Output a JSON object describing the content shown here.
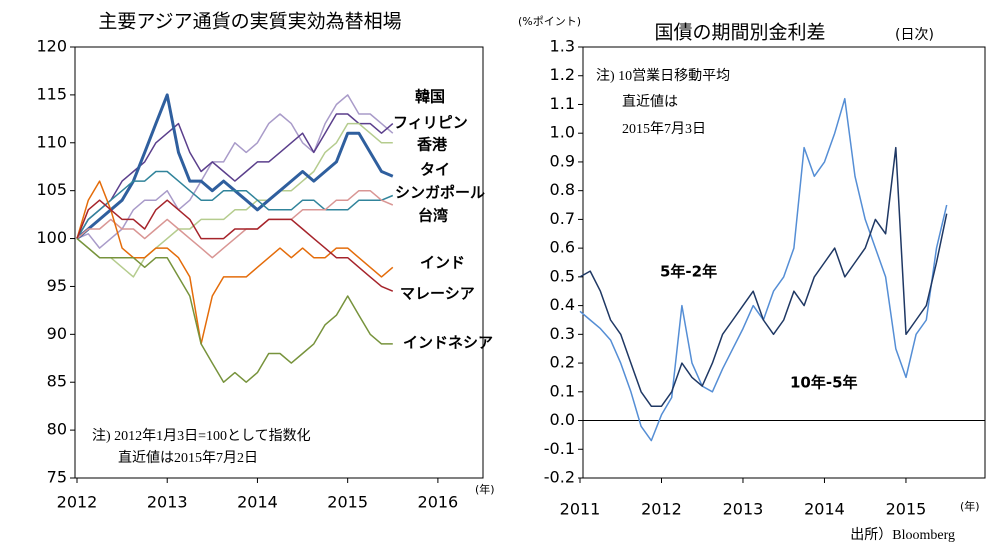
{
  "chart_data": [
    {
      "type": "line",
      "title": "主要アジア通貨の実質実効為替相場",
      "x_unit": "(年)",
      "notes": [
        "注) 2012年1月3日=100として指数化",
        "直近値は2015年7月2日"
      ],
      "x": [
        2012,
        2012.125,
        2012.25,
        2012.375,
        2012.5,
        2012.625,
        2012.75,
        2012.875,
        2013,
        2013.125,
        2013.25,
        2013.375,
        2013.5,
        2013.625,
        2013.75,
        2013.875,
        2014,
        2014.125,
        2014.25,
        2014.375,
        2014.5,
        2014.625,
        2014.75,
        2014.875,
        2015,
        2015.125,
        2015.25,
        2015.375,
        2015.5
      ],
      "xlim": [
        2012,
        2016.5
      ],
      "xticks": [
        2012,
        2013,
        2014,
        2015,
        2016
      ],
      "ylim": [
        75,
        120
      ],
      "yticks": [
        75,
        80,
        85,
        90,
        95,
        100,
        105,
        110,
        115,
        120
      ],
      "series": [
        {
          "name": "韓国",
          "color": "#a99bc9",
          "values": [
            100,
            100.5,
            99,
            100,
            101,
            103,
            104,
            104,
            105,
            103,
            104,
            106,
            108,
            108,
            110,
            109,
            110,
            112,
            113,
            112,
            110,
            109,
            112,
            114,
            115,
            113,
            113,
            112,
            111
          ]
        },
        {
          "name": "フィリピン",
          "color": "#5b3f8c",
          "values": [
            100,
            102,
            103,
            104,
            106,
            107,
            108,
            110,
            111,
            112,
            109,
            107,
            108,
            107,
            106,
            107,
            108,
            108,
            109,
            110,
            111,
            109,
            111,
            113,
            113,
            112,
            112,
            111,
            112
          ]
        },
        {
          "name": "香港",
          "color": "#b5cc8e",
          "values": [
            100,
            99,
            98,
            98,
            97,
            96,
            98,
            99,
            100,
            101,
            101,
            102,
            102,
            102,
            103,
            103,
            104,
            104,
            105,
            105,
            106,
            107,
            109,
            110,
            112,
            112,
            111,
            110,
            110
          ]
        },
        {
          "name": "タイ",
          "color": "#2f5f9e",
          "values": [
            100,
            101,
            102,
            103,
            104,
            106,
            109,
            112,
            115,
            109,
            106,
            106,
            105,
            106,
            105,
            104,
            103,
            104,
            105,
            106,
            107,
            106,
            107,
            108,
            111,
            111,
            109,
            107,
            106.5
          ]
        },
        {
          "name": "シンガポール",
          "color": "#31849b",
          "values": [
            100,
            102,
            103,
            104,
            105,
            106,
            106,
            107,
            107,
            106,
            105,
            104,
            104,
            105,
            105,
            105,
            104,
            103,
            103,
            103,
            104,
            104,
            103,
            103,
            103,
            104,
            104,
            104,
            104.5
          ]
        },
        {
          "name": "台湾",
          "color": "#d99694",
          "values": [
            100,
            101,
            101,
            102,
            101,
            101,
            100,
            101,
            102,
            101,
            100,
            99,
            98,
            99,
            100,
            101,
            101,
            102,
            102,
            102,
            103,
            103,
            103,
            104,
            104,
            105,
            105,
            104,
            103.5
          ]
        },
        {
          "name": "インド",
          "color": "#e46c0a",
          "values": [
            100,
            104,
            106,
            103,
            99,
            98,
            98,
            99,
            99,
            98,
            96,
            89,
            94,
            96,
            96,
            96,
            97,
            98,
            99,
            98,
            99,
            98,
            98,
            99,
            99,
            98,
            97,
            96,
            97
          ]
        },
        {
          "name": "マレーシア",
          "color": "#a6242b",
          "values": [
            100,
            103,
            104,
            103,
            102,
            102,
            101,
            103,
            104,
            103,
            102,
            100,
            100,
            100,
            101,
            101,
            101,
            102,
            102,
            102,
            101,
            100,
            99,
            98,
            98,
            97,
            96,
            95,
            94.5
          ]
        },
        {
          "name": "インドネシア",
          "color": "#77933c",
          "values": [
            100,
            99,
            98,
            98,
            98,
            98,
            97,
            98,
            98,
            96,
            94,
            89,
            87,
            85,
            86,
            85,
            86,
            88,
            88,
            87,
            88,
            89,
            91,
            92,
            94,
            92,
            90,
            89,
            89
          ]
        }
      ]
    },
    {
      "type": "line",
      "title": "国債の期間別金利差",
      "subtitle": "(日次)",
      "y_unit": "(%ポイント)",
      "x_unit": "(年)",
      "notes": [
        "注) 10営業日移動平均",
        "直近値は",
        "2015年7月3日"
      ],
      "source": "出所）Bloomberg",
      "x": [
        2011,
        2011.125,
        2011.25,
        2011.375,
        2011.5,
        2011.625,
        2011.75,
        2011.875,
        2012,
        2012.125,
        2012.25,
        2012.375,
        2012.5,
        2012.625,
        2012.75,
        2012.875,
        2013,
        2013.125,
        2013.25,
        2013.375,
        2013.5,
        2013.625,
        2013.75,
        2013.875,
        2014,
        2014.125,
        2014.25,
        2014.375,
        2014.5,
        2014.625,
        2014.75,
        2014.875,
        2015,
        2015.125,
        2015.25,
        2015.375,
        2015.5
      ],
      "xlim": [
        2011,
        2015.97
      ],
      "xticks": [
        2011,
        2012,
        2013,
        2014,
        2015
      ],
      "ylim": [
        -0.2,
        1.3
      ],
      "yticks": [
        -0.2,
        -0.1,
        {
          "value": 0,
          "label": "0.0"
        },
        0.1,
        0.2,
        0.3,
        0.4,
        0.5,
        0.6,
        0.7,
        0.8,
        0.9,
        {
          "value": 1,
          "label": "1.0"
        },
        1.1,
        1.2,
        1.3
      ],
      "series": [
        {
          "name": "5年-2年",
          "color": "#558ed5",
          "values": [
            0.38,
            0.35,
            0.32,
            0.28,
            0.2,
            0.1,
            -0.02,
            -0.07,
            0.02,
            0.08,
            0.4,
            0.2,
            0.12,
            0.1,
            0.18,
            0.25,
            0.32,
            0.4,
            0.35,
            0.45,
            0.5,
            0.6,
            0.95,
            0.85,
            0.9,
            1.0,
            1.12,
            0.85,
            0.7,
            0.6,
            0.5,
            0.25,
            0.15,
            0.3,
            0.35,
            0.6,
            0.75
          ]
        },
        {
          "name": "10年-5年",
          "color": "#1f3864",
          "values": [
            0.5,
            0.52,
            0.45,
            0.35,
            0.3,
            0.2,
            0.1,
            0.05,
            0.05,
            0.1,
            0.2,
            0.15,
            0.12,
            0.2,
            0.3,
            0.35,
            0.4,
            0.45,
            0.35,
            0.3,
            0.35,
            0.45,
            0.4,
            0.5,
            0.55,
            0.6,
            0.5,
            0.55,
            0.6,
            0.7,
            0.65,
            0.95,
            0.3,
            0.35,
            0.4,
            0.55,
            0.72
          ]
        }
      ]
    }
  ]
}
